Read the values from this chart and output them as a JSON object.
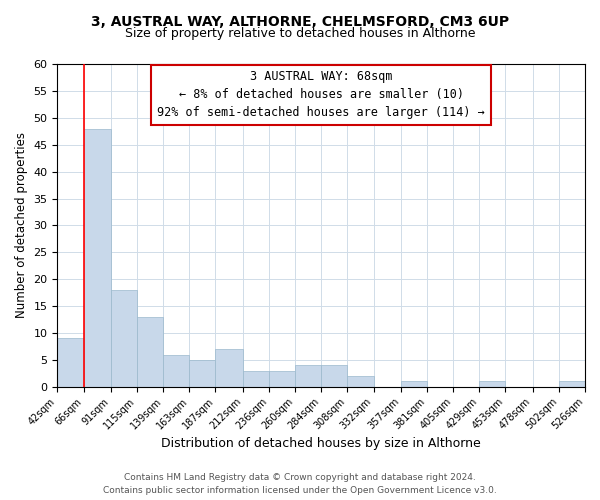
{
  "title": "3, AUSTRAL WAY, ALTHORNE, CHELMSFORD, CM3 6UP",
  "subtitle": "Size of property relative to detached houses in Althorne",
  "xlabel": "Distribution of detached houses by size in Althorne",
  "ylabel": "Number of detached properties",
  "bar_color": "#c8d8ea",
  "bar_edgecolor": "#9ab8cc",
  "grid_color": "#d0dce8",
  "redline_x": 66,
  "annotation_title": "3 AUSTRAL WAY: 68sqm",
  "annotation_line1": "← 8% of detached houses are smaller (10)",
  "annotation_line2": "92% of semi-detached houses are larger (114) →",
  "annotation_box_edgecolor": "#cc0000",
  "annotation_box_facecolor": "#ffffff",
  "footer1": "Contains HM Land Registry data © Crown copyright and database right 2024.",
  "footer2": "Contains public sector information licensed under the Open Government Licence v3.0.",
  "bin_edges": [
    42,
    66,
    91,
    115,
    139,
    163,
    187,
    212,
    236,
    260,
    284,
    308,
    332,
    357,
    381,
    405,
    429,
    453,
    478,
    502,
    526
  ],
  "bin_counts": [
    9,
    48,
    18,
    13,
    6,
    5,
    7,
    3,
    3,
    4,
    4,
    2,
    0,
    1,
    0,
    0,
    1,
    0,
    0,
    1
  ],
  "ylim": [
    0,
    60
  ],
  "yticks": [
    0,
    5,
    10,
    15,
    20,
    25,
    30,
    35,
    40,
    45,
    50,
    55,
    60
  ],
  "figsize": [
    6.0,
    5.0
  ],
  "dpi": 100
}
